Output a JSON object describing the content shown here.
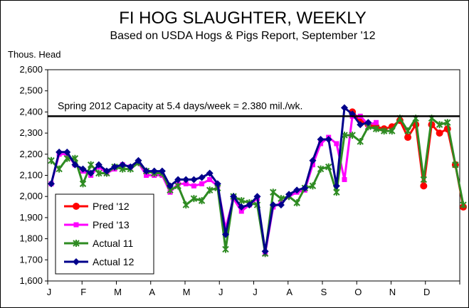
{
  "chart_data": {
    "type": "line",
    "title": "FI HOG SLAUGHTER, WEEKLY",
    "subtitle": "Based on USDA Hogs & Pigs Report, September '12",
    "ylabel": "Thous. Head",
    "ylim": [
      1600,
      2600
    ],
    "yticks": [
      "1,600",
      "1,700",
      "1,800",
      "1,900",
      "2,000",
      "2,100",
      "2,200",
      "2,300",
      "2,400",
      "2,500",
      "2,600"
    ],
    "ytick_values": [
      1600,
      1700,
      1800,
      1900,
      2000,
      2100,
      2200,
      2300,
      2400,
      2500,
      2600
    ],
    "months": [
      "J",
      "F",
      "M",
      "A",
      "M",
      "J",
      "J",
      "A",
      "S",
      "O",
      "N",
      "D"
    ],
    "weeks": 52,
    "grid": "off",
    "legend_position": "bottom-left",
    "reference_line": {
      "value": 2380,
      "label": "Spring 2012 Capacity at 5.4 days/week = 2.380 mil./wk."
    },
    "series": [
      {
        "name": "Pred '12",
        "color": "#ff0000",
        "marker": "circle",
        "values": [
          null,
          null,
          null,
          null,
          null,
          null,
          null,
          null,
          null,
          null,
          null,
          null,
          null,
          null,
          null,
          null,
          null,
          null,
          null,
          null,
          null,
          null,
          null,
          null,
          null,
          null,
          null,
          null,
          null,
          null,
          null,
          null,
          null,
          null,
          null,
          null,
          null,
          null,
          2400,
          2360,
          2340,
          2330,
          2320,
          2330,
          2360,
          2280,
          2340,
          2050,
          2340,
          2300,
          2320,
          2150,
          1950
        ]
      },
      {
        "name": "Pred '13",
        "color": "#ff00ff",
        "marker": "square",
        "values": [
          2060,
          2200,
          2200,
          2150,
          2120,
          2100,
          2140,
          2110,
          2130,
          2150,
          2140,
          2160,
          2100,
          2100,
          2100,
          2020,
          2060,
          2060,
          2050,
          2060,
          2080,
          2050,
          1850,
          1990,
          1930,
          1960,
          1990,
          1730,
          1950,
          1970,
          2000,
          2020,
          2030,
          2150,
          2250,
          2280,
          2250,
          2080,
          2380,
          2380,
          2340,
          2350,
          null,
          null,
          null,
          null,
          null,
          null,
          null,
          null,
          null,
          null,
          null
        ]
      },
      {
        "name": "Actual 11",
        "color": "#2e8b22",
        "marker": "x",
        "values": [
          2170,
          2130,
          2180,
          2180,
          2060,
          2150,
          2110,
          2110,
          2140,
          2130,
          2130,
          2160,
          2120,
          2110,
          2110,
          2030,
          2050,
          1960,
          1990,
          1980,
          2030,
          2040,
          1750,
          2000,
          1980,
          1970,
          1960,
          1730,
          2020,
          1990,
          2000,
          1970,
          2040,
          2050,
          2130,
          2140,
          2020,
          2290,
          2290,
          2260,
          2330,
          2320,
          2310,
          2310,
          2370,
          2310,
          2370,
          2080,
          2370,
          2340,
          2350,
          2150,
          1960
        ]
      },
      {
        "name": "Actual 12",
        "color": "#00008b",
        "marker": "diamond",
        "values": [
          2060,
          2210,
          2210,
          2150,
          2130,
          2110,
          2150,
          2120,
          2140,
          2150,
          2140,
          2170,
          2120,
          2120,
          2120,
          2050,
          2080,
          2080,
          2080,
          2090,
          2110,
          2060,
          1820,
          2000,
          1950,
          1960,
          2000,
          1740,
          1960,
          1960,
          2010,
          2030,
          2040,
          2170,
          2270,
          2270,
          2050,
          2420,
          2390,
          2340,
          2350,
          null,
          null,
          null,
          null,
          null,
          null,
          null,
          null,
          null,
          null,
          null,
          null
        ]
      }
    ]
  }
}
